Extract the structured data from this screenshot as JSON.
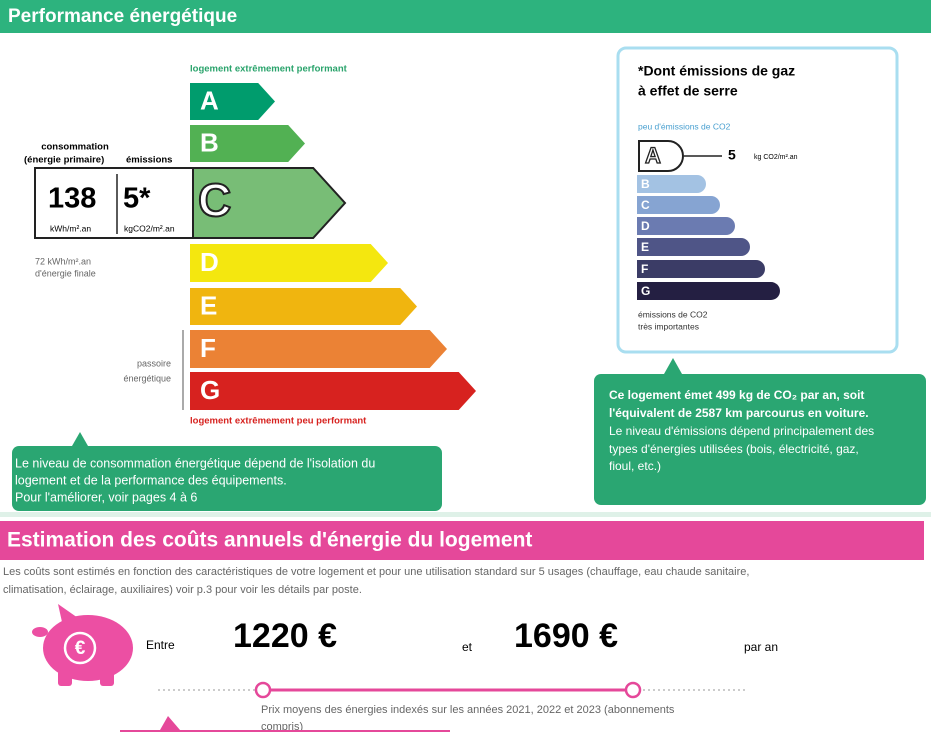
{
  "header": {
    "title": "Performance énergétique"
  },
  "energy": {
    "top_label": "logement extrêmement performant",
    "bottom_label": "logement extrêmement peu performant",
    "classes": [
      "A",
      "B",
      "C",
      "D",
      "E",
      "F",
      "G"
    ],
    "colors": [
      "#009c6d",
      "#52b153",
      "#78bd76",
      "#f4e70f",
      "#f0b50f",
      "#eb8235",
      "#d7221f"
    ],
    "consumption_label": [
      "consommation",
      "(énergie primaire)"
    ],
    "emissions_label": "émissions",
    "consumption": 138,
    "consumption_unit": "kWh/m².an",
    "emissions": "5*",
    "emissions_unit": "kgCO2/m².an",
    "final_energy": [
      "72 kWh/m².an",
      "d'énergie finale"
    ],
    "passoire": [
      "passoire",
      "énergétique"
    ],
    "note": [
      "Le niveau de consommation énergétique dépend de l'isolation du",
      "logement et de la performance des équipements.",
      "Pour l'améliorer, voir pages 4 à 6"
    ]
  },
  "ghg": {
    "title": [
      "*Dont émissions de gaz",
      "à effet de serre"
    ],
    "low_label": "peu d'émissions de CO2",
    "classes": [
      "A",
      "B",
      "C",
      "D",
      "E",
      "F",
      "G"
    ],
    "colors": [
      "#ffffff",
      "#a3c2e3",
      "#86a4d2",
      "#6b7bb1",
      "#4f5587",
      "#3b3c66",
      "#241f42"
    ],
    "value": 5,
    "unit": "kg CO2/m².an",
    "high_label": [
      "émissions de CO2",
      "très importantes"
    ],
    "note_bold": [
      "Ce logement émet 499 kg de CO₂ par an, soit",
      "l'équivalent de 2587  km parcourus en voiture."
    ],
    "note": [
      "Le niveau d'émissions dépend principalement des",
      "types d'énergies utilisées (bois, électricité, gaz,",
      "fioul, etc.)"
    ]
  },
  "costs": {
    "title": "Estimation des coûts annuels d'énergie du logement",
    "description": [
      "Les coûts sont estimés en fonction des caractéristiques de votre logement et pour une utilisation standard sur 5 usages (chauffage, eau chaude sanitaire,",
      "climatisation, éclairage, auxiliaires) voir p.3 pour voir les détails par poste."
    ],
    "icon_symbol": "€",
    "between": "Entre",
    "min": "1220 €",
    "and": "et",
    "max": "1690 €",
    "per": "par an",
    "prices_note": [
      "Prix moyens des énergies indexés sur les années 2021, 2022 et 2023 (abonnements",
      "compris)"
    ]
  }
}
